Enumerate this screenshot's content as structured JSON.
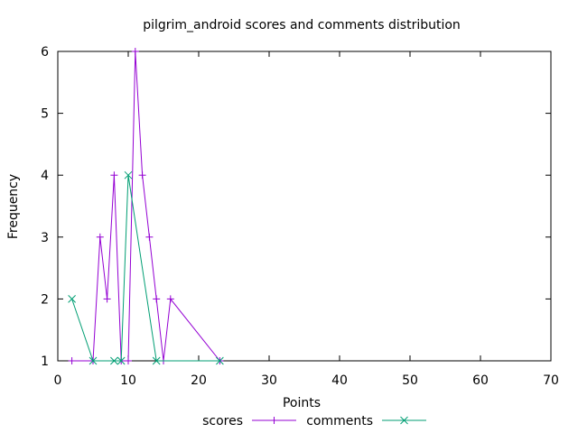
{
  "chart_data": {
    "type": "line",
    "title": "pilgrim_android scores and comments distribution",
    "xlabel": "Points",
    "ylabel": "Frequency",
    "xlim": [
      0,
      70
    ],
    "ylim": [
      1,
      6
    ],
    "x_ticks": [
      0,
      10,
      20,
      30,
      40,
      50,
      60,
      70
    ],
    "y_ticks": [
      1,
      2,
      3,
      4,
      5,
      6
    ],
    "grid": false,
    "legend_position": "bottom-center",
    "series": [
      {
        "name": "scores",
        "color": "#9400d3",
        "marker": "plus",
        "points": [
          [
            2,
            1
          ],
          [
            5,
            1
          ],
          [
            6,
            3
          ],
          [
            7,
            2
          ],
          [
            8,
            4
          ],
          [
            9,
            1
          ],
          [
            10,
            1
          ],
          [
            11,
            6
          ],
          [
            12,
            4
          ],
          [
            13,
            3
          ],
          [
            14,
            2
          ],
          [
            15,
            1
          ],
          [
            16,
            2
          ],
          [
            23,
            1
          ]
        ]
      },
      {
        "name": "comments",
        "color": "#009e73",
        "marker": "cross",
        "points": [
          [
            2,
            2
          ],
          [
            5,
            1
          ],
          [
            8,
            1
          ],
          [
            9,
            1
          ],
          [
            10,
            4
          ],
          [
            14,
            1
          ],
          [
            23,
            1
          ]
        ]
      }
    ]
  }
}
